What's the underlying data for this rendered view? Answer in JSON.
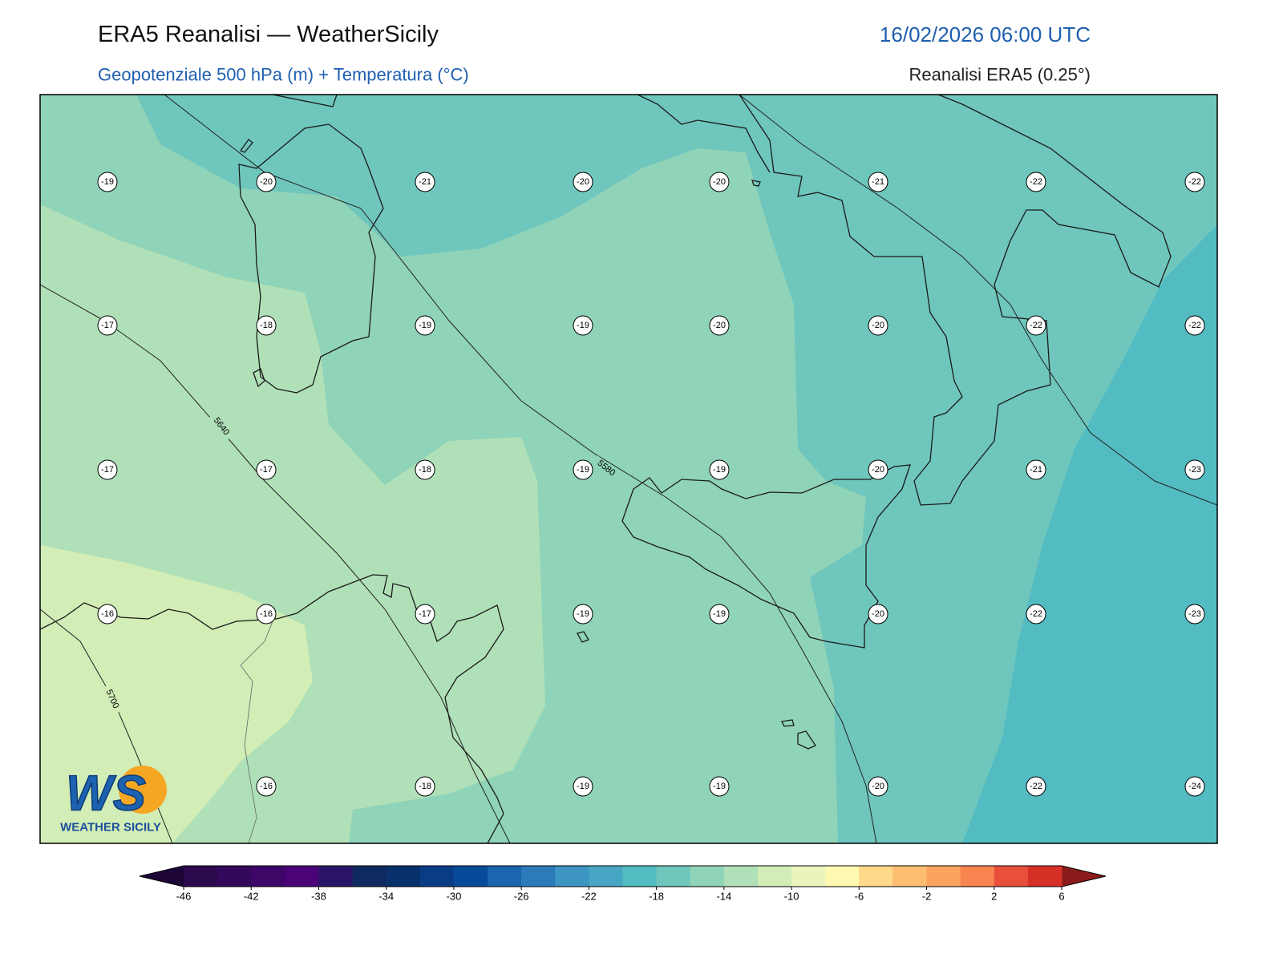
{
  "header": {
    "title": "ERA5 Reanalisi — WeatherSicily",
    "datetime": "16/02/2026 06:00 UTC",
    "subtitle": "Geopotenziale 500 hPa (m) + Temperatura (°C)",
    "source": "Reanalisi ERA5 (0.25°)"
  },
  "map": {
    "temperature_labels": [
      [
        -19,
        -20,
        -21,
        -20,
        -20,
        -21,
        -22,
        -22
      ],
      [
        -17,
        -18,
        -19,
        -19,
        -20,
        -20,
        -22,
        -22
      ],
      [
        -17,
        -17,
        -18,
        -19,
        -19,
        -20,
        -21,
        -23
      ],
      [
        -16,
        -16,
        -17,
        -19,
        -19,
        -20,
        -22,
        -23
      ],
      [
        null,
        -16,
        -18,
        -19,
        -19,
        -20,
        -22,
        -24
      ]
    ],
    "contour_labels": [
      "5640",
      "5580",
      "5700"
    ]
  },
  "colorbar": {
    "ticks": [
      -46,
      -42,
      -38,
      -34,
      -30,
      -26,
      -22,
      -18,
      -14,
      -10,
      -6,
      -2,
      2,
      6
    ],
    "colors": [
      "#2c0a4e",
      "#33095c",
      "#3d0667",
      "#4a0478",
      "#2a1468",
      "#0f2a60",
      "#08306b",
      "#083d86",
      "#084a9a",
      "#1a64b0",
      "#2b7bba",
      "#3d95c4",
      "#46a6c4",
      "#52bcc2",
      "#6fc6bc",
      "#8fd3b8",
      "#b0e0b8",
      "#d2edb6",
      "#eaf5be",
      "#fff8b0",
      "#fed98a",
      "#fdbe72",
      "#fca45f",
      "#f88450",
      "#e8503b",
      "#d73027"
    ],
    "under_color": "#1e0538",
    "over_color": "#8b1a1a"
  },
  "logo": {
    "mark": "WS",
    "text": "WEATHER SICILY"
  }
}
